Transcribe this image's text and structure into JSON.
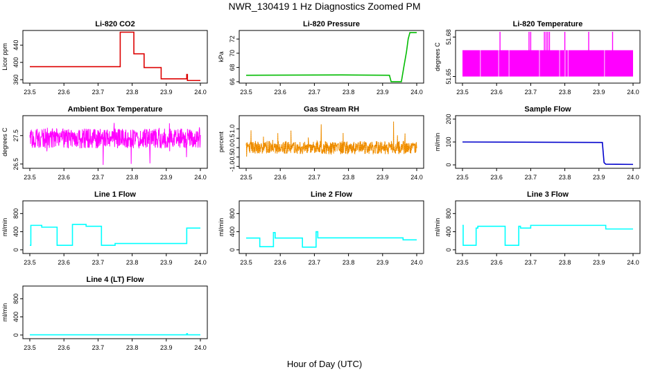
{
  "page": {
    "title": "NWR_130419  1 Hz Diagnostics Zoomed PM",
    "xlabel": "Hour of Day (UTC)"
  },
  "chart_data": [
    {
      "type": "line",
      "title": "Li-820 CO2",
      "ylabel": "Licor ppm",
      "color": "#dd0000",
      "xlim": [
        23.5,
        24.0
      ],
      "ylim": [
        352,
        474
      ],
      "xticks": [
        23.5,
        23.6,
        23.7,
        23.8,
        23.9,
        24.0
      ],
      "xtick_labels": [
        "23.5",
        "23.6",
        "23.7",
        "23.8",
        "23.9",
        "24.0"
      ],
      "yticks": [
        360,
        400,
        440
      ],
      "ytick_labels": [
        "360",
        "400",
        "440"
      ],
      "series": [
        {
          "x": [
            23.5,
            23.765,
            23.765,
            23.805,
            23.805,
            23.835,
            23.835,
            23.885,
            23.885,
            23.96,
            23.96,
            23.962,
            23.962,
            24.0
          ],
          "y": [
            390,
            390,
            470,
            470,
            420,
            420,
            388,
            388,
            362,
            362,
            372,
            372,
            358,
            358
          ]
        }
      ]
    },
    {
      "type": "line",
      "title": "Li-820 Pressure",
      "ylabel": "kPa",
      "color": "#00bb00",
      "xlim": [
        23.5,
        24.0
      ],
      "ylim": [
        65.8,
        73.2
      ],
      "xticks": [
        23.5,
        23.6,
        23.7,
        23.8,
        23.9,
        24.0
      ],
      "xtick_labels": [
        "23.5",
        "23.6",
        "23.7",
        "23.8",
        "23.9",
        "24.0"
      ],
      "yticks": [
        66,
        68,
        70,
        72
      ],
      "ytick_labels": [
        "66",
        "68",
        "70",
        "72"
      ],
      "series": [
        {
          "x": [
            23.5,
            23.78,
            23.92,
            23.925,
            23.955,
            23.962,
            23.97,
            23.975,
            23.98,
            24.0
          ],
          "y": [
            66.9,
            66.95,
            66.9,
            66.0,
            66.0,
            68.0,
            70.2,
            72.0,
            72.9,
            72.9
          ]
        }
      ]
    },
    {
      "type": "line",
      "title": "Li-820 Temperature",
      "ylabel": "degrees C",
      "color": "#ff00ff",
      "xlim": [
        23.5,
        24.0
      ],
      "ylim": [
        51.645,
        51.685
      ],
      "xticks": [
        23.5,
        23.6,
        23.7,
        23.8,
        23.9,
        24.0
      ],
      "xtick_labels": [
        "23.5",
        "23.6",
        "23.7",
        "23.8",
        "23.9",
        "24.0"
      ],
      "yticks": [
        51.65,
        51.68
      ],
      "ytick_labels": [
        "51.65",
        "51.68"
      ],
      "band": {
        "low": 51.65,
        "high": 51.67
      },
      "spikes": {
        "x": [
          23.61,
          23.695,
          23.7,
          23.74,
          23.745,
          23.75,
          23.755,
          23.8,
          23.87,
          23.94
        ],
        "y": 51.684
      }
    },
    {
      "type": "line",
      "title": "Ambient Box Temperature",
      "ylabel": "degrees C",
      "color": "#ff00ff",
      "xlim": [
        23.5,
        24.0
      ],
      "ylim": [
        26.35,
        28.2
      ],
      "xticks": [
        23.5,
        23.6,
        23.7,
        23.8,
        23.9,
        24.0
      ],
      "xtick_labels": [
        "23.5",
        "23.6",
        "23.7",
        "23.8",
        "23.9",
        "24.0"
      ],
      "yticks": [
        26.5,
        27.5
      ],
      "ytick_labels": [
        "26.5",
        "27.5"
      ],
      "noise": {
        "mean": 27.4,
        "amplitude": 0.35,
        "min": 26.4,
        "max": 28.1
      }
    },
    {
      "type": "line",
      "title": "Gas Stream RH",
      "ylabel": "percent",
      "color": "#ff9900",
      "xlim": [
        23.5,
        24.0
      ],
      "ylim": [
        -1.1,
        1.7
      ],
      "xticks": [
        23.5,
        23.6,
        23.7,
        23.8,
        23.9,
        24.0
      ],
      "xtick_labels": [
        "23.5",
        "23.6",
        "23.7",
        "23.8",
        "23.9",
        "24.0"
      ],
      "yticks": [
        -1.0,
        -0.5,
        0.0,
        0.5,
        1.0
      ],
      "ytick_labels": [
        "-1.0",
        "-0.5",
        "0.0",
        "0.5",
        "1.0"
      ],
      "noise": {
        "mean": 0.0,
        "amplitude": 0.35,
        "min": -0.9,
        "max": 1.5
      }
    },
    {
      "type": "line",
      "title": "Sample Flow",
      "ylabel": "ml/min",
      "color": "#0000cc",
      "xlim": [
        23.5,
        24.0
      ],
      "ylim": [
        -15,
        215
      ],
      "xticks": [
        23.5,
        23.6,
        23.7,
        23.8,
        23.9,
        24.0
      ],
      "xtick_labels": [
        "23.5",
        "23.6",
        "23.7",
        "23.8",
        "23.9",
        "24.0"
      ],
      "yticks": [
        0,
        100,
        200
      ],
      "ytick_labels": [
        "0",
        "100",
        "200"
      ],
      "series": [
        {
          "x": [
            23.5,
            23.91,
            23.91,
            23.915,
            23.92,
            24.0
          ],
          "y": [
            100,
            98,
            98,
            10,
            3,
            2
          ]
        }
      ]
    },
    {
      "type": "line",
      "title": "Line 1 Flow",
      "ylabel": "ml/min",
      "color": "#00ffff",
      "xlim": [
        23.5,
        24.0
      ],
      "ylim": [
        -80,
        1080
      ],
      "xticks": [
        23.5,
        23.6,
        23.7,
        23.8,
        23.9,
        24.0
      ],
      "xtick_labels": [
        "23.5",
        "23.6",
        "23.7",
        "23.8",
        "23.9",
        "24.0"
      ],
      "yticks": [
        0,
        400,
        800
      ],
      "ytick_labels": [
        "0",
        "400",
        "800"
      ],
      "series": [
        {
          "x": [
            23.5,
            23.503,
            23.503,
            23.535,
            23.535,
            23.58,
            23.58,
            23.625,
            23.625,
            23.665,
            23.665,
            23.71,
            23.71,
            23.75,
            23.75,
            23.96,
            23.96,
            24.0
          ],
          "y": [
            100,
            100,
            540,
            540,
            500,
            500,
            100,
            100,
            560,
            560,
            520,
            520,
            100,
            100,
            140,
            140,
            480,
            480
          ]
        }
      ]
    },
    {
      "type": "line",
      "title": "Line 2 Flow",
      "ylabel": "ml/min",
      "color": "#00ffff",
      "xlim": [
        23.5,
        24.0
      ],
      "ylim": [
        -80,
        1080
      ],
      "xticks": [
        23.5,
        23.6,
        23.7,
        23.8,
        23.9,
        24.0
      ],
      "xtick_labels": [
        "23.5",
        "23.6",
        "23.7",
        "23.8",
        "23.9",
        "24.0"
      ],
      "yticks": [
        0,
        400,
        800
      ],
      "ytick_labels": [
        "0",
        "400",
        "800"
      ],
      "series": [
        {
          "x": [
            23.5,
            23.54,
            23.54,
            23.58,
            23.58,
            23.585,
            23.585,
            23.665,
            23.665,
            23.705,
            23.705,
            23.71,
            23.71,
            23.96,
            23.96,
            24.0
          ],
          "y": [
            260,
            260,
            70,
            70,
            380,
            380,
            260,
            260,
            60,
            60,
            400,
            400,
            265,
            265,
            220,
            220
          ]
        }
      ]
    },
    {
      "type": "line",
      "title": "Line 3 Flow",
      "ylabel": "ml/min",
      "color": "#00ffff",
      "xlim": [
        23.5,
        24.0
      ],
      "ylim": [
        -80,
        1080
      ],
      "xticks": [
        23.5,
        23.6,
        23.7,
        23.8,
        23.9,
        24.0
      ],
      "xtick_labels": [
        "23.5",
        "23.6",
        "23.7",
        "23.8",
        "23.9",
        "24.0"
      ],
      "yticks": [
        0,
        400,
        800
      ],
      "ytick_labels": [
        "0",
        "400",
        "800"
      ],
      "series": [
        {
          "x": [
            23.5,
            23.502,
            23.502,
            23.505,
            23.505,
            23.54,
            23.54,
            23.545,
            23.545,
            23.625,
            23.625,
            23.665,
            23.665,
            23.67,
            23.67,
            23.7,
            23.7,
            23.92,
            23.92,
            24.0
          ],
          "y": [
            540,
            540,
            100,
            100,
            100,
            100,
            480,
            480,
            520,
            520,
            100,
            100,
            520,
            520,
            480,
            480,
            540,
            540,
            460,
            460
          ]
        }
      ]
    },
    {
      "type": "line",
      "title": "Line 4 (LT) Flow",
      "ylabel": "ml/min",
      "color": "#00ffff",
      "xlim": [
        23.5,
        24.0
      ],
      "ylim": [
        -80,
        1080
      ],
      "xticks": [
        23.5,
        23.6,
        23.7,
        23.8,
        23.9,
        24.0
      ],
      "xtick_labels": [
        "23.5",
        "23.6",
        "23.7",
        "23.8",
        "23.9",
        "24.0"
      ],
      "yticks": [
        0,
        400,
        800
      ],
      "ytick_labels": [
        "0",
        "400",
        "800"
      ],
      "series": [
        {
          "x": [
            23.5,
            23.96,
            23.96,
            23.962,
            23.962,
            24.0
          ],
          "y": [
            5,
            5,
            30,
            30,
            5,
            5
          ]
        }
      ]
    }
  ]
}
